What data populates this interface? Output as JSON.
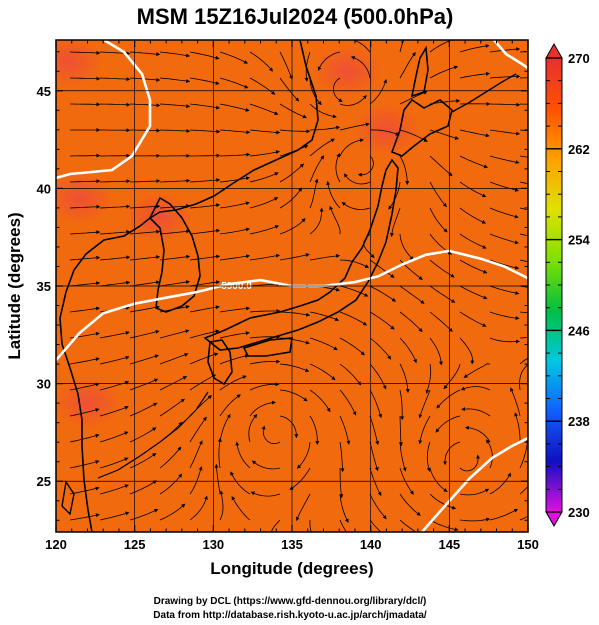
{
  "chart_data": {
    "type": "heatmap",
    "title": "MSM 15Z16Jul2024 (500.0hPa)",
    "xlabel": "Longitude (degrees)",
    "ylabel": "Latitude  (degrees)",
    "xlim": [
      120,
      150
    ],
    "ylim": [
      22.4,
      47.6
    ],
    "x_ticks": [
      120,
      125,
      130,
      135,
      140,
      145,
      150
    ],
    "y_ticks": [
      25,
      30,
      35,
      40,
      45
    ],
    "grid": true,
    "colorbar": {
      "min": 230,
      "max": 270,
      "ticks": [
        230,
        238,
        246,
        254,
        262,
        270
      ],
      "colors": [
        "#e010e0",
        "#1010c0",
        "#1060ff",
        "#00c8e0",
        "#00c040",
        "#80e000",
        "#e0e000",
        "#ffa000",
        "#ff5000",
        "#e83030"
      ]
    },
    "contour_label": "5900.0",
    "contour_5900": [
      [
        120,
        31.2
      ],
      [
        121.5,
        32.6
      ],
      [
        123,
        33.6
      ],
      [
        125,
        34.1
      ],
      [
        127,
        34.4
      ],
      [
        129,
        34.7
      ],
      [
        131,
        35.1
      ],
      [
        133,
        35.3
      ],
      [
        135,
        35.0
      ],
      [
        137,
        35.0
      ],
      [
        139,
        35.2
      ],
      [
        140.5,
        35.5
      ],
      [
        142,
        36.1
      ],
      [
        143.5,
        36.6
      ],
      [
        145,
        36.8
      ],
      [
        147,
        36.4
      ],
      [
        148.5,
        36.0
      ],
      [
        150,
        35.4
      ]
    ],
    "warm_pockets": [
      {
        "lon": 121.5,
        "lat": 39.5,
        "value": 269
      },
      {
        "lon": 126.5,
        "lat": 38.5,
        "value": 269
      },
      {
        "lon": 120.8,
        "lat": 46.5,
        "value": 269
      },
      {
        "lon": 138.5,
        "lat": 46.0,
        "value": 269
      },
      {
        "lon": 141,
        "lat": 43,
        "value": 268.5
      },
      {
        "lon": 122,
        "lat": 29,
        "value": 268.5
      }
    ],
    "vortices": [
      {
        "lon": 134,
        "lat": 27.5,
        "sense": "anticyclonic"
      },
      {
        "lon": 139.5,
        "lat": 41.5,
        "sense": "anticyclonic"
      },
      {
        "lon": 138.5,
        "lat": 45,
        "sense": "cyclonic"
      },
      {
        "lon": 146,
        "lat": 26,
        "sense": "cyclonic"
      }
    ],
    "credits": [
      "Drawing by DCL (https://www.gfd-dennou.org/library/dcl/)",
      "Data from http://database.rish.kyoto-u.ac.jp/arch/jmadata/"
    ]
  }
}
